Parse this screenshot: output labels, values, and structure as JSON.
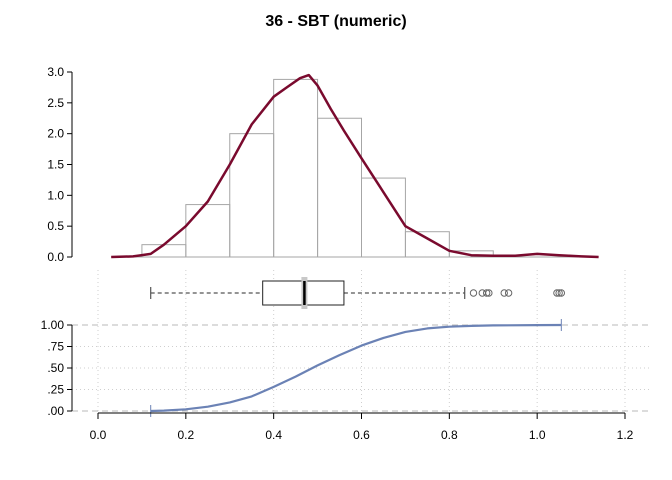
{
  "title": "36 - SBT (numeric)",
  "chart_data": [
    {
      "type": "histogram",
      "bin_edges": [
        0.1,
        0.2,
        0.3,
        0.4,
        0.5,
        0.6,
        0.7,
        0.8,
        0.9
      ],
      "values": [
        0.2,
        0.85,
        2.0,
        2.88,
        2.25,
        1.28,
        0.41,
        0.1
      ],
      "ylim": [
        0,
        3.0
      ],
      "yticks": [
        "0.0",
        "0.5",
        "1.0",
        "1.5",
        "2.0",
        "2.5",
        "3.0"
      ],
      "density_curve": {
        "name": "",
        "color": "#7a0a2e",
        "x": [
          0.03,
          0.08,
          0.12,
          0.15,
          0.2,
          0.25,
          0.3,
          0.35,
          0.4,
          0.43,
          0.46,
          0.48,
          0.5,
          0.53,
          0.56,
          0.6,
          0.65,
          0.7,
          0.75,
          0.8,
          0.85,
          0.9,
          0.95,
          1.0,
          1.05,
          1.1,
          1.14
        ],
        "y": [
          0.0,
          0.01,
          0.05,
          0.2,
          0.5,
          0.9,
          1.5,
          2.15,
          2.6,
          2.75,
          2.9,
          2.95,
          2.78,
          2.4,
          2.05,
          1.6,
          1.05,
          0.5,
          0.3,
          0.1,
          0.03,
          0.02,
          0.02,
          0.05,
          0.03,
          0.01,
          0.0
        ]
      }
    },
    {
      "type": "boxplot",
      "whisker_low": 0.12,
      "q1": 0.375,
      "median": 0.47,
      "q3": 0.56,
      "whisker_high": 0.835,
      "mean": 0.47,
      "outliers": [
        0.855,
        0.875,
        0.885,
        0.89,
        0.925,
        0.935,
        1.045,
        1.05,
        1.055
      ]
    },
    {
      "type": "line",
      "name": "",
      "color": "#6b82b5",
      "x": [
        0.12,
        0.15,
        0.2,
        0.25,
        0.3,
        0.35,
        0.4,
        0.45,
        0.5,
        0.55,
        0.6,
        0.65,
        0.7,
        0.75,
        0.8,
        0.85,
        0.9,
        1.0,
        1.055
      ],
      "y": [
        0.0,
        0.005,
        0.02,
        0.05,
        0.1,
        0.17,
        0.28,
        0.4,
        0.53,
        0.65,
        0.76,
        0.85,
        0.92,
        0.96,
        0.98,
        0.99,
        0.995,
        0.999,
        1.0
      ],
      "ylim": [
        0,
        1
      ],
      "yticks": [
        "1.00",
        ".75",
        ".50",
        ".25",
        ".00"
      ],
      "ytick_values": [
        1.0,
        0.75,
        0.5,
        0.25,
        0.0
      ]
    }
  ],
  "x_axis": {
    "range": [
      0.0,
      1.2
    ],
    "ticks": [
      "0.0",
      "0.2",
      "0.4",
      "0.6",
      "0.8",
      "1.0",
      "1.2"
    ],
    "tick_values": [
      0.0,
      0.2,
      0.4,
      0.6,
      0.8,
      1.0,
      1.2
    ]
  }
}
